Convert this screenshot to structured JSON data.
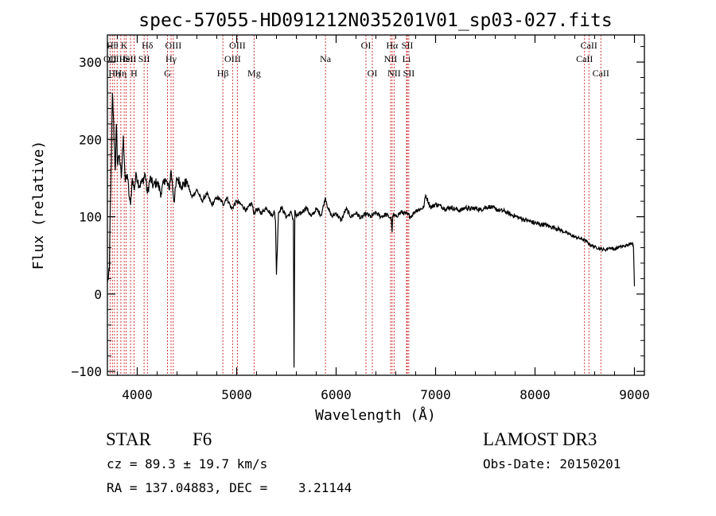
{
  "chart_data": {
    "type": "line",
    "title": "spec-57055-HD091212N035201V01_sp03-027.fits",
    "xlabel": "Wavelength (Å)",
    "ylabel": "Flux (relative)",
    "xlim": [
      3700,
      9100
    ],
    "ylim": [
      -105,
      335
    ],
    "xticks": [
      4000,
      5000,
      6000,
      7000,
      8000,
      9000
    ],
    "yticks": [
      -100,
      0,
      100,
      200,
      300
    ],
    "xtick_labels": [
      "4000",
      "5000",
      "6000",
      "7000",
      "8000",
      "9000"
    ],
    "ytick_labels": [
      "−100",
      "0",
      "100",
      "200",
      "300"
    ],
    "series": [
      {
        "name": "flux",
        "x": [
          3700,
          3720,
          3730,
          3740,
          3750,
          3760,
          3770,
          3780,
          3790,
          3800,
          3820,
          3840,
          3860,
          3880,
          3900,
          3920,
          3933,
          3950,
          3968,
          3990,
          4020,
          4050,
          4080,
          4102,
          4130,
          4160,
          4200,
          4240,
          4280,
          4320,
          4340,
          4370,
          4400,
          4450,
          4500,
          4550,
          4600,
          4650,
          4700,
          4750,
          4800,
          4850,
          4861,
          4900,
          4950,
          5000,
          5050,
          5100,
          5150,
          5175,
          5200,
          5250,
          5300,
          5350,
          5380,
          5390,
          5400,
          5420,
          5450,
          5500,
          5550,
          5570,
          5577,
          5585,
          5600,
          5650,
          5700,
          5750,
          5800,
          5850,
          5893,
          5920,
          5960,
          6000,
          6050,
          6100,
          6150,
          6200,
          6250,
          6300,
          6350,
          6400,
          6450,
          6500,
          6540,
          6555,
          6563,
          6570,
          6600,
          6650,
          6700,
          6750,
          6800,
          6850,
          6880,
          6900,
          6950,
          7000,
          7050,
          7100,
          7150,
          7200,
          7250,
          7300,
          7350,
          7400,
          7450,
          7500,
          7550,
          7600,
          7650,
          7700,
          7750,
          7800,
          7850,
          7900,
          7950,
          8000,
          8050,
          8100,
          8150,
          8200,
          8250,
          8300,
          8350,
          8400,
          8450,
          8500,
          8550,
          8600,
          8650,
          8700,
          8750,
          8800,
          8850,
          8900,
          8950,
          8980,
          8990,
          9000
        ],
        "values": [
          15,
          30,
          120,
          170,
          260,
          230,
          190,
          160,
          220,
          170,
          180,
          150,
          205,
          145,
          155,
          125,
          115,
          150,
          135,
          155,
          140,
          145,
          155,
          130,
          150,
          140,
          145,
          130,
          150,
          135,
          160,
          120,
          150,
          140,
          145,
          125,
          135,
          120,
          130,
          115,
          125,
          120,
          115,
          125,
          110,
          120,
          115,
          108,
          118,
          104,
          110,
          105,
          112,
          102,
          106,
          95,
          25,
          105,
          112,
          100,
          105,
          95,
          -95,
          108,
          100,
          105,
          112,
          100,
          110,
          102,
          125,
          110,
          100,
          105,
          95,
          110,
          100,
          105,
          98,
          104,
          100,
          105,
          100,
          103,
          99,
          97,
          80,
          102,
          100,
          106,
          104,
          100,
          108,
          110,
          112,
          128,
          112,
          116,
          114,
          110,
          112,
          110,
          108,
          112,
          110,
          111,
          109,
          112,
          113,
          110,
          108,
          107,
          103,
          101,
          98,
          96,
          94,
          92,
          90,
          90,
          87,
          86,
          83,
          80,
          77,
          74,
          72,
          70,
          64,
          61,
          59,
          57,
          60,
          58,
          61,
          62,
          64,
          67,
          60,
          10
        ]
      }
    ],
    "lines": [
      {
        "wavelength": 3727,
        "label": "OII",
        "row": 2
      },
      {
        "wavelength": 3750,
        "label": "Hθ",
        "row": 1
      },
      {
        "wavelength": 3771,
        "label": "Hη",
        "row": 3
      },
      {
        "wavelength": 3798,
        "label": "OIII",
        "row": 2
      },
      {
        "wavelength": 3835,
        "label": "Hη",
        "row": 3
      },
      {
        "wavelength": 3869,
        "label": "K",
        "row": 1
      },
      {
        "wavelength": 3889,
        "label": "HeI",
        "row": 2
      },
      {
        "wavelength": 3933,
        "label": "SII",
        "row": 2
      },
      {
        "wavelength": 3968,
        "label": "H",
        "row": 3
      },
      {
        "wavelength": 4069,
        "label": "SII",
        "row": 2
      },
      {
        "wavelength": 4102,
        "label": "Hδ",
        "row": 1
      },
      {
        "wavelength": 4304,
        "label": "G",
        "row": 3
      },
      {
        "wavelength": 4340,
        "label": "Hγ",
        "row": 2
      },
      {
        "wavelength": 4363,
        "label": "OIII",
        "row": 1
      },
      {
        "wavelength": 4861,
        "label": "Hβ",
        "row": 3
      },
      {
        "wavelength": 4959,
        "label": "OIII",
        "row": 2
      },
      {
        "wavelength": 5007,
        "label": "OIII",
        "row": 1
      },
      {
        "wavelength": 5175,
        "label": "Mg",
        "row": 3
      },
      {
        "wavelength": 5893,
        "label": "Na",
        "row": 2
      },
      {
        "wavelength": 6300,
        "label": "OI",
        "row": 1
      },
      {
        "wavelength": 6364,
        "label": "OI",
        "row": 3
      },
      {
        "wavelength": 6548,
        "label": "NII",
        "row": 2
      },
      {
        "wavelength": 6563,
        "label": "Hα",
        "row": 1
      },
      {
        "wavelength": 6583,
        "label": "NII",
        "row": 3
      },
      {
        "wavelength": 6708,
        "label": "Li",
        "row": 2
      },
      {
        "wavelength": 6716,
        "label": "SII",
        "row": 1
      },
      {
        "wavelength": 6731,
        "label": "SII",
        "row": 3
      },
      {
        "wavelength": 8498,
        "label": "CaII",
        "row": 2
      },
      {
        "wavelength": 8542,
        "label": "CaII",
        "row": 1
      },
      {
        "wavelength": 8662,
        "label": "CaII",
        "row": 3
      }
    ],
    "line_color": "#cc2222",
    "curve_color": "#000000"
  },
  "footer": {
    "object_class": "STAR",
    "subclass": "F6",
    "velocity": "cz = 89.3 ± 19.7 km/s",
    "coordinates": "RA = 137.04883, DEC =    3.21144",
    "survey": "LAMOST DR3",
    "obs_date": "Obs-Date: 20150201"
  }
}
